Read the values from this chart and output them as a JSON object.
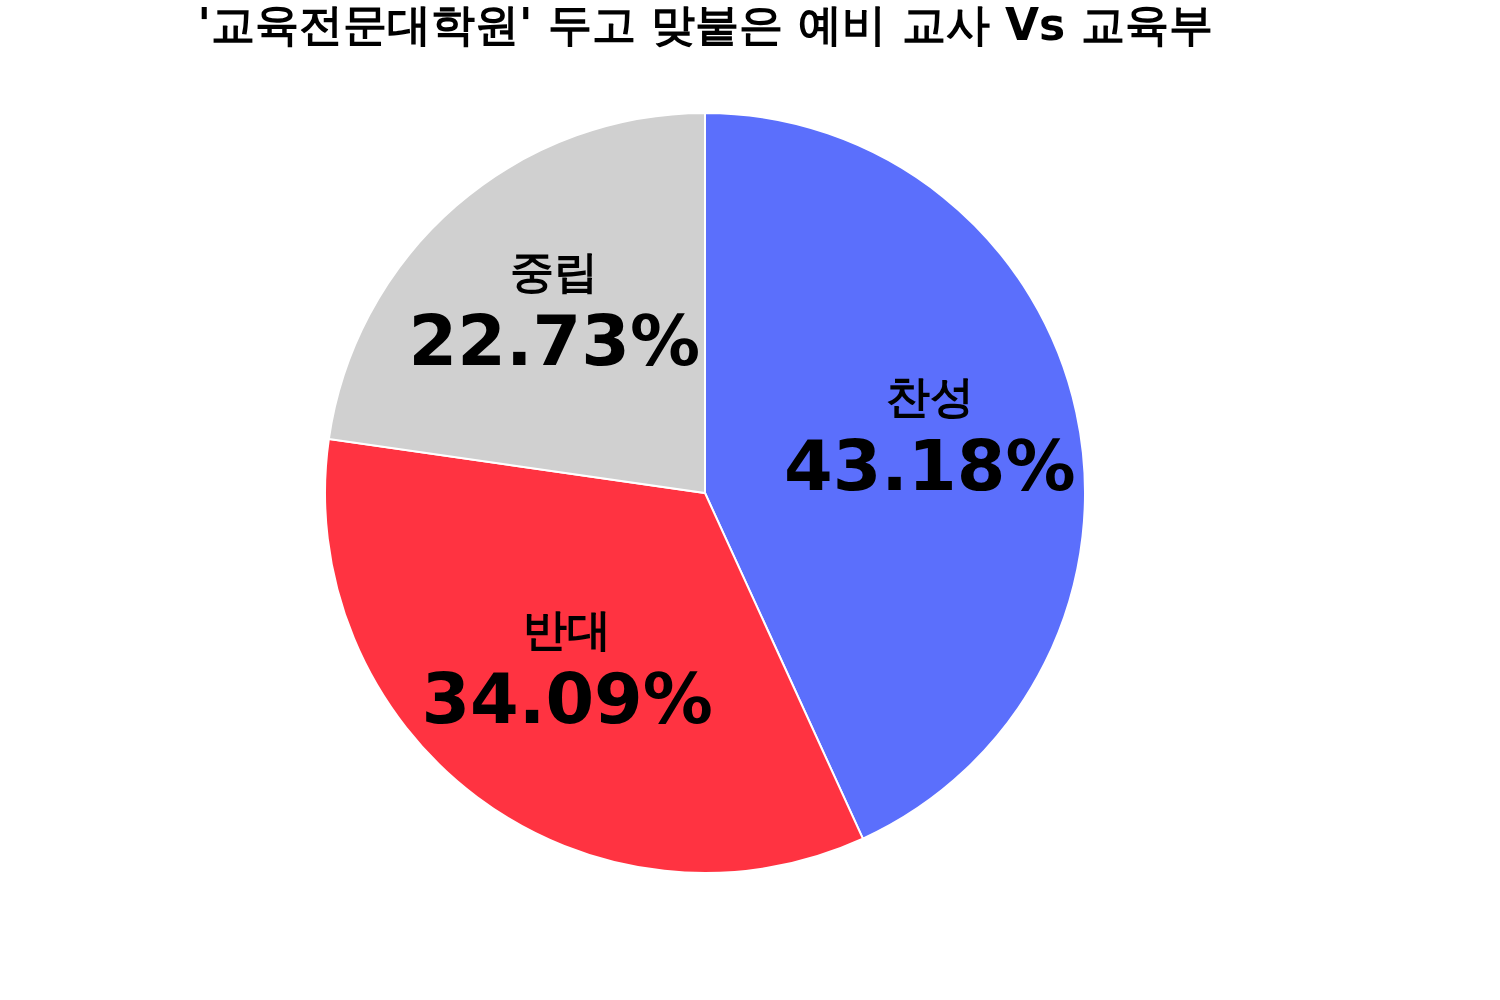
{
  "chart_data": {
    "type": "pie",
    "title": "'교육전문대학원' 두고 맞붙은 예비 교사 Vs 교육부",
    "categories": [
      "찬성",
      "반대",
      "중립"
    ],
    "values": [
      43.18,
      34.09,
      22.73
    ],
    "colors": [
      "#5b6ffc",
      "#ff3341",
      "#d0d0d0"
    ],
    "value_labels": [
      "43.18%",
      "34.09%",
      "22.73%"
    ],
    "legend": false
  }
}
